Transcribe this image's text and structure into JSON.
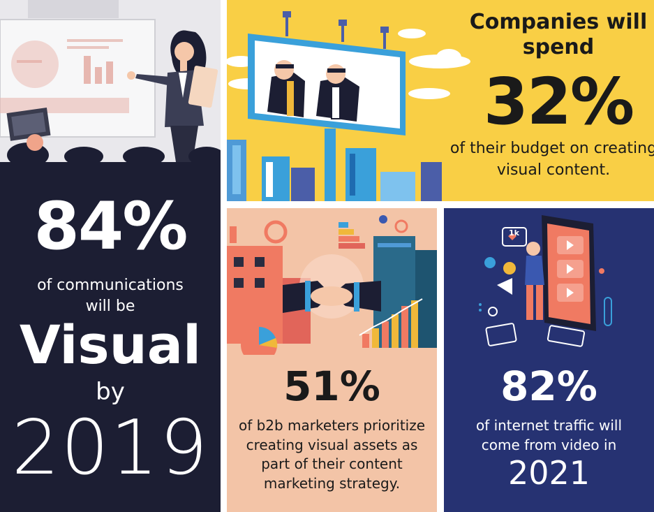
{
  "panels": {
    "left": {
      "percent": "84%",
      "line1": "of communications",
      "line2": "will be",
      "emphasis": "Visual",
      "by": "by",
      "year": "2019",
      "bg": "#1c1e33"
    },
    "top": {
      "heading": "Companies will spend",
      "percent": "32%",
      "sub": "of their budget on creating visual content.",
      "bg": "#f9cf45"
    },
    "middle": {
      "percent": "51%",
      "sub": "of b2b marketers prioritize creating visual assets as part of their content marketing strategy.",
      "bg": "#f3c4a7"
    },
    "right": {
      "percent": "82%",
      "sub": "of internet traffic will come from video in",
      "year": "2021",
      "badge": "1k",
      "bg": "#263272"
    }
  }
}
